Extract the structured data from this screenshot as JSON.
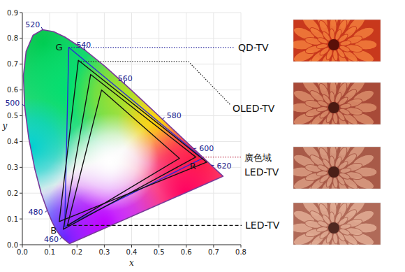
{
  "chart_data": {
    "type": "line",
    "xlabel": "x",
    "ylabel": "y",
    "xlim": [
      0,
      0.8
    ],
    "ylim": [
      0,
      0.9
    ],
    "xticks": [
      {
        "value": 0,
        "label": "0.0"
      },
      0.1,
      0.2,
      0.3,
      0.4,
      0.5,
      0.6,
      0.7,
      0.8
    ],
    "yticks": [
      {
        "value": 0,
        "label": "0.0"
      },
      0.1,
      0.2,
      0.3,
      0.4,
      0.5,
      0.6,
      0.7,
      0.8,
      0.9
    ],
    "grid": true,
    "series": [
      {
        "type": "line",
        "color": "#7a3a9a",
        "x": [
          0.1741,
          0.1714,
          0.1644,
          0.1566,
          0.144,
          0.1355,
          0.1241,
          0.1096,
          0.0913,
          0.0687,
          0.0454,
          0.0235,
          0.0082,
          0.0039,
          0.0139,
          0.0389,
          0.0743,
          0.1142,
          0.1547,
          0.2296,
          0.3016,
          0.3731,
          0.4441,
          0.5125,
          0.5752,
          0.627,
          0.6658,
          0.6915,
          0.719,
          0.73,
          0.7347
        ],
        "values": [
          0.005,
          0.0051,
          0.0109,
          0.0177,
          0.0297,
          0.0399,
          0.0578,
          0.0868,
          0.1327,
          0.2007,
          0.295,
          0.4127,
          0.5384,
          0.6548,
          0.7502,
          0.812,
          0.8338,
          0.8262,
          0.8059,
          0.7543,
          0.6923,
          0.6245,
          0.5547,
          0.4866,
          0.4242,
          0.3725,
          0.334,
          0.3083,
          0.2809,
          0.27,
          0.2653
        ],
        "wavelengths": [
          null,
          null,
          null,
          null,
          460,
          null,
          null,
          null,
          480,
          null,
          null,
          null,
          500,
          null,
          null,
          null,
          520,
          null,
          null,
          540,
          null,
          560,
          null,
          580,
          null,
          600,
          null,
          620,
          null,
          null,
          null
        ]
      },
      {
        "type": "line",
        "color": "#2a2ad8",
        "x": [
          0.17,
          0.66,
          0.155
        ],
        "values": [
          0.765,
          0.335,
          0.07
        ],
        "point_labels": [
          "G",
          "R",
          "B"
        ]
      },
      {
        "type": "line",
        "color": "#111111",
        "x": [
          0.205,
          0.675,
          0.135
        ],
        "values": [
          0.715,
          0.32,
          0.09
        ]
      },
      {
        "type": "line",
        "color": "#111111",
        "x": [
          0.25,
          0.635,
          0.15
        ],
        "values": [
          0.66,
          0.34,
          0.06
        ]
      },
      {
        "type": "line",
        "color": "#111111",
        "x": [
          0.29,
          0.575,
          0.165
        ],
        "values": [
          0.6,
          0.335,
          0.075
        ]
      }
    ],
    "annotations": [
      {
        "text": [
          "QD-TV"
        ],
        "x": 0.17,
        "y": 0.765,
        "color": "#2a2aa0",
        "line_style": "dotted"
      },
      {
        "text": [
          "OLED-TV"
        ],
        "x": 0.205,
        "y": 0.71,
        "color": "#222222",
        "line_style": "dotted"
      },
      {
        "text": [
          "廣色域",
          "LED-TV"
        ],
        "x": 0.635,
        "y": 0.34,
        "color": "#c0304a",
        "line_style": "dotted"
      },
      {
        "text": [
          "LED-TV"
        ],
        "x": 0.165,
        "y": 0.075,
        "color": "#111111",
        "line_style": "dashed"
      }
    ]
  }
}
